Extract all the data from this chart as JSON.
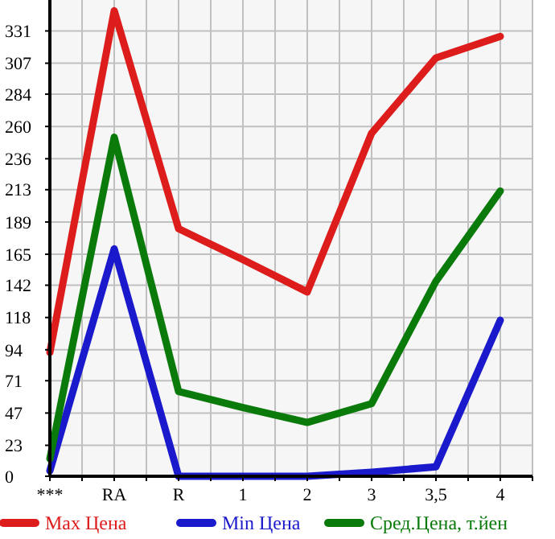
{
  "chart_data": {
    "type": "line",
    "categories": [
      "***",
      "RA",
      "R",
      "1",
      "2",
      "3",
      "3,5",
      "4"
    ],
    "series": [
      {
        "name": "Max Цена",
        "color": "#dd1c1c",
        "values": [
          92,
          346,
          184,
          161,
          137,
          255,
          311,
          327
        ]
      },
      {
        "name": "Min Цена",
        "color": "#1a1acc",
        "values": [
          4,
          169,
          0,
          0,
          0,
          3,
          7,
          116
        ]
      },
      {
        "name": "Сред.Цена, т.йен",
        "color": "#0a7a0a",
        "values": [
          13,
          252,
          63,
          51,
          40,
          54,
          145,
          212
        ]
      }
    ],
    "ylim": [
      0,
      354
    ],
    "yticks": [
      0,
      23,
      47,
      71,
      94,
      118,
      142,
      165,
      189,
      213,
      236,
      260,
      284,
      307,
      331
    ],
    "grid": true,
    "legend": "bottom",
    "marker": "none",
    "line_style": "solid"
  }
}
